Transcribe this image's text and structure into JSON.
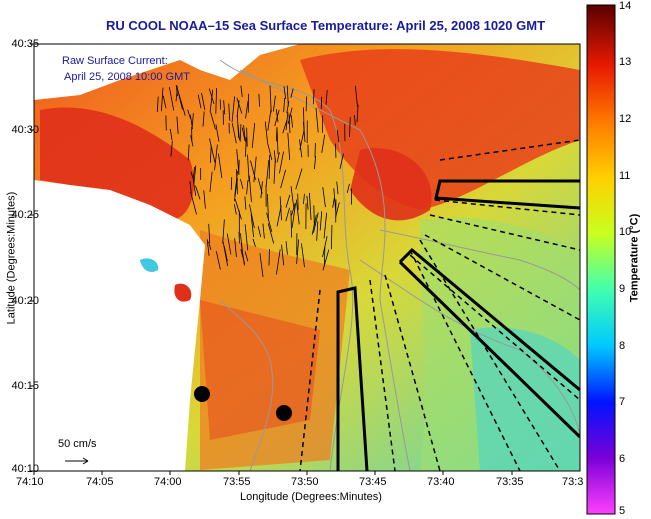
{
  "title": "RU COOL  NOAA–15  Sea Surface Temperature:  April 25, 2008 1020 GMT",
  "overlay": {
    "line1": "Raw Surface Current:",
    "line2": "April 25, 2008 10:00 GMT",
    "scale_label": "50 cm/s"
  },
  "axes": {
    "xlabel": "Longitude (Degrees:Minutes)",
    "ylabel": "Latitude (Degrees:Minutes)",
    "x_ticks": [
      "74:10",
      "74:05",
      "74:00",
      "73:55",
      "73:50",
      "73:45",
      "73:40",
      "73:35",
      "73:3"
    ],
    "y_ticks": [
      "40:35",
      "40:30",
      "40:25",
      "40:20",
      "40:15",
      "40:10"
    ]
  },
  "colorbar": {
    "label": "Temperature (°C)",
    "ticks": [
      "14",
      "13",
      "12",
      "11",
      "10",
      "9",
      "8",
      "7",
      "6",
      "5"
    ],
    "colors": [
      "#ff40ff",
      "#7a00d8",
      "#0014ff",
      "#00c8ff",
      "#40ffb0",
      "#c8ff20",
      "#ffd000",
      "#ff7a00",
      "#e81a00",
      "#5a0000"
    ]
  },
  "colors": {
    "title": "#1a1aa0",
    "land": "#ffffff",
    "warm": "#e83a1a",
    "mid": "#f7b21a",
    "cool": "#6fd6a0"
  }
}
